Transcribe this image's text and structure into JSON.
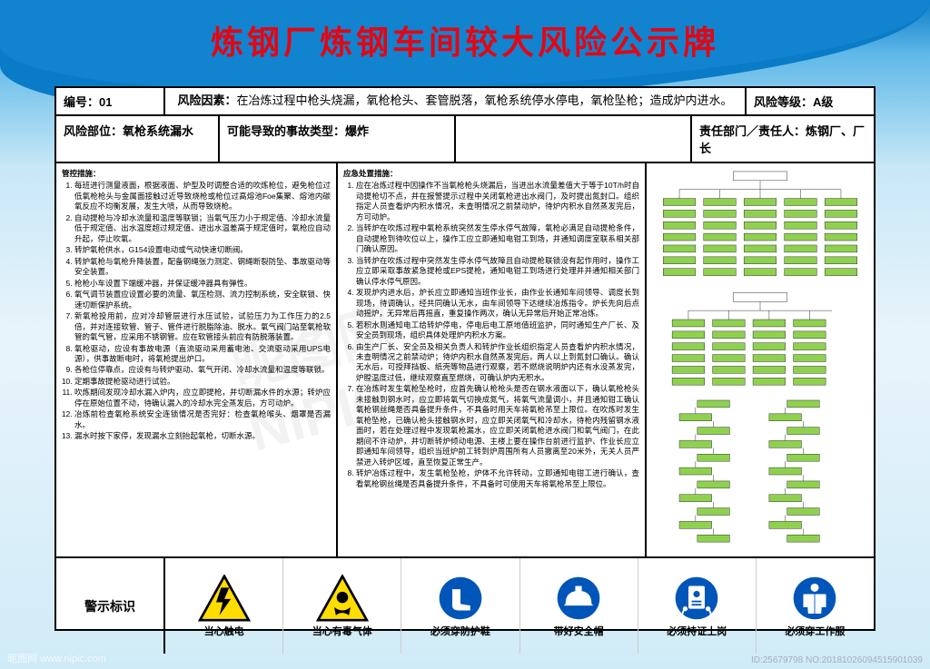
{
  "title": "炼钢厂炼钢车间较大风险公示牌",
  "header": {
    "id_lbl": "编号：",
    "id_val": "01",
    "risk_lbl": "风险因素：",
    "risk_txt": "在冶炼过程中枪头烧漏，氧枪枪头、套管脱落，氧枪系统停水停电，氧枪坠枪；造成炉内进水。",
    "level_lbl": "风险等级：",
    "level_val": "A级"
  },
  "row2": {
    "part_lbl": "风险部位：",
    "part_val": "氧枪系统漏水",
    "type_lbl": "可能导致的事故类型：",
    "type_val": "爆炸",
    "dept_lbl": "责任部门／责任人：",
    "dept_val": "炼钢厂、厂长"
  },
  "colA": {
    "title": "管控措施：",
    "items": [
      "每班进行测量液面，根据液面、炉型及时调整合适的吹炼枪位，避免枪位过低氧枪枪头与金属面接触过近导致烧枪或枪位过高熔池Foe集聚、熔池内碳氧反应不均衡发展，发生大喷，从而导致烧枪。",
      "自动提枪与冷却水流量和温度等联锁；当氧气压力小于规定值、冷却水流量低于规定值、出水温度超过规定值、进出水温差高于规定值时，氧枪应自动升起，停止吹氧。",
      "转炉氧枪供水，G154设置电动或气动快速切断阀。",
      "转炉氧枪与氧枪升降装置，配备钢绳张力测定、钢绳断裂防坠、事故驱动等安全装置。",
      "枪枪小车设置下端缓冲器，并保证缓冲器具有弹性。",
      "氧气调节装置应设置必要的流量、氧压检测、流力控制系统，安全联锁、快速切断保护系统。",
      "新氧枪投用前，应对冷却管层进行水压试验，试验压力为工作压力的2.5倍，并对连接软管、管子、管件进行脱脂除油、脱水。氧气阀门站至氧枪软管的氧气管，应采用不锈钢管。应在软管接头前应有防脱落装置。",
      "氧枪驱动，应设有事故电源（直流驱动采用蓄电池、交流驱动采用UPS电源），供事故断电时，将氧枪提出炉口。",
      "各枪位停靠点，应设有与转炉驱动、氧气开闭、冷却水流量和温度等联锁。",
      "定期事故提枪驱动进行试验。",
      "吹炼期间发现冷却水漏入炉内，应立即提枪，并切断漏水件的水源；转炉应停在原始位置不动，待确认漏入的冷却水完全蒸发后，方可动炉。",
      "冶炼前检查氧枪系统安全连锁情况是否完好：检查氧枪喉头、烟罩是否漏水。",
      "漏水时按下家停，发现漏水立刻抬起氧枪，切断水源。"
    ]
  },
  "colB": {
    "title": "应急处置措施：",
    "items": [
      "应在冶炼过程中因操作不当氧枪枪头烧漏后，当进出水流量差值大于等于10T/h时自动提枪切不点，并在报警提示过程中关闭氧枪进出水阀门，及时提出氮封口。组织指定人员查看炉内积水情况，未查明情况之前禁动炉，待炉内积水自然蒸发完后，方可动炉。",
      "当转炉在吹炼过程中氧枪系统突然发生停水停气故障，氧枪必满足自动提枪条件，自动提枪到待吹位以上，操作工应立即通知电钳工到场，并通知调度室联系相关部门确认原因。",
      "当转炉在吹炼过程中突然发生停水停气故障且自动提枪联锁没有起作用时，操作工应立即采取事故紧急提枪或EPS提枪，通知电钳工到场进行处理并并通知相关部门确认停水停气原因。",
      "发现炉内进水后，炉长应立即通知当班作业长，由作业长通知车间领导、调度长到现场，待调确认，经共同确认无水，由车间领导下达继续冶炼指令。炉长先向后点动摇炉，无异常后再摇直，重复操作两次，确认无异常后开始正常冶炼。",
      "若积水则通知电工给转炉停电，停电后电工原地值班监护，同时通知生产厂长、及安全员到现场，组织具体处理炉内积水方案。",
      "由生产厂长、安全员及相关负责人和转炉作业长组织指定人员查看炉内积水情况，未查明情况之前禁动炉；待炉内积水自然蒸发完后，两人以上到氮封口确认。确认无水后，可授拜挡板、纸壳等物品进行观察，若不燃烧说明炉内还有水没蒸发完，炉膛温度过低，继续观察直至燃烧，可确认炉内无积水。",
      "在冶炼时发生氧枪坠枪时，应首先确认枪枪头是否在钢水液面以下，确认氧枪枪头未接触到钢水时，应立即将氧气切换成氮气，将氧气流量调小，并且通知钳工确认氧枪钢丝绳是否具备提升条件，不具备时用天车将氧枪吊至上限位。在吹炼时发生氧枪坠枪，已确认枪头接触钢水时，应立即关闭氧气和冷却水，待枪内残留钢水液面时，若在处理过程中发现氧枪漏水，应立即关闭氧枪进水阀门和氧气阀门，在此期间不许动炉，并切断转炉倾动电源、主楼上要在操作台前进行监护、作业长应立即通知车间领导，组织当班炉前工转到炉周围所有人员撤离至20米外，无关人员严禁进入转炉区域，直至恢复正常生产。",
      "转炉冶炼过程中，发生氧枪坠枪，炉体不允许转动，立即通知电钳工进行确认，查看氧枪钢丝绳是否具备提升条件，不具备时可使用天车将氧枪吊至上限位。"
    ]
  },
  "signs": {
    "label": "警示标识",
    "items": [
      {
        "txt": "当心触电",
        "type": "warn",
        "icon": "bolt"
      },
      {
        "txt": "当心有毒气体",
        "type": "warn",
        "icon": "toxic"
      },
      {
        "txt": "必须穿防护鞋",
        "type": "mand",
        "icon": "boot"
      },
      {
        "txt": "带好安全帽",
        "type": "mand",
        "icon": "helmet"
      },
      {
        "txt": "必须持证上岗",
        "type": "mand",
        "icon": "card"
      },
      {
        "txt": "必须穿工作服",
        "type": "mand",
        "icon": "suit"
      }
    ]
  },
  "colors": {
    "warn_bg": "#ffdd00",
    "warn_bd": "#000",
    "mand_bg": "#0055b8",
    "mand_fg": "#fff",
    "title": "#e30613",
    "bg1": "#0a7cc7"
  },
  "wm": {
    "a": "昵图网 www.nipic.com",
    "b": "ID:25679798 NO:20181026094515901039",
    "c": "昵图网 NIPIC.COM"
  }
}
